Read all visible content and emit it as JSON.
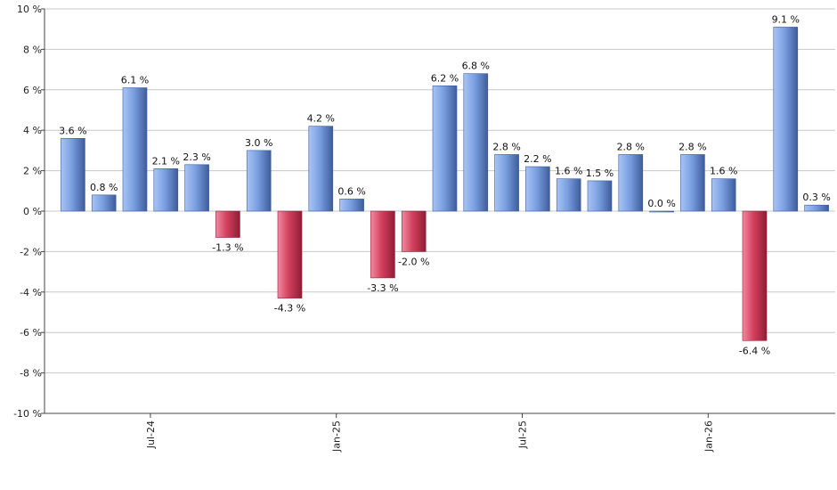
{
  "chart_data": {
    "type": "bar",
    "y_unit_suffix": " %",
    "ylim": [
      -10,
      10
    ],
    "y_ticks": [
      10,
      8,
      6,
      4,
      2,
      0,
      -2,
      -4,
      -6,
      -8,
      -10
    ],
    "y_tick_labels": [
      "10 %",
      "8 %",
      "6 %",
      "4 %",
      "2 %",
      "0 %",
      "-2 %",
      "-4 %",
      "-6 %",
      "-8 %",
      "-10 %"
    ],
    "grid": true,
    "x_tick_labels": [
      {
        "label": "Jul-24",
        "after_bar": 2
      },
      {
        "label": "Jan-25",
        "after_bar": 8
      },
      {
        "label": "Jul-25",
        "after_bar": 14
      },
      {
        "label": "Jan-26",
        "after_bar": 20
      }
    ],
    "values": [
      3.6,
      0.8,
      6.1,
      2.1,
      2.3,
      -1.3,
      3.0,
      -4.3,
      4.2,
      0.6,
      -3.3,
      -2.0,
      6.2,
      6.8,
      2.8,
      2.2,
      1.6,
      1.5,
      2.8,
      0.0,
      2.8,
      1.6,
      -6.4,
      9.1,
      0.3
    ],
    "data_labels": [
      "3.6 %",
      "0.8 %",
      "6.1 %",
      "2.1 %",
      "2.3 %",
      "-1.3 %",
      "3.0 %",
      "-4.3 %",
      "4.2 %",
      "0.6 %",
      "-3.3 %",
      "-2.0 %",
      "6.2 %",
      "6.8 %",
      "2.8 %",
      "2.2 %",
      "1.6 %",
      "1.5 %",
      "2.8 %",
      "0.0 %",
      "2.8 %",
      "1.6 %",
      "-6.4 %",
      "9.1 %",
      "0.3 %"
    ],
    "colors": {
      "positive_light": "#a9c4f5",
      "positive_mid": "#7a9fe0",
      "positive_dark": "#3e5c9c",
      "negative_light": "#f08aa0",
      "negative_mid": "#d4405e",
      "negative_dark": "#8f1d35",
      "grid": "#c8c8c8",
      "axis": "#444444"
    }
  }
}
